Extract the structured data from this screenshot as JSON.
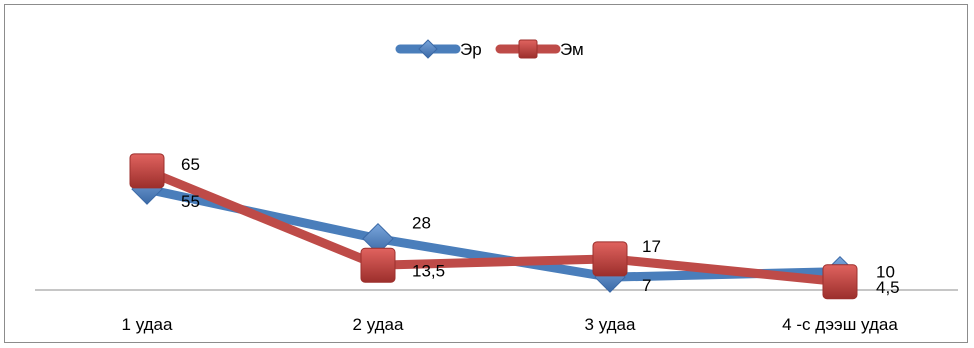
{
  "chart_data": {
    "type": "line",
    "categories": [
      "1 удаа",
      "2 удаа",
      "3 удаа",
      "4 -с дээш удаа"
    ],
    "series": [
      {
        "name": "Эр",
        "values": [
          55,
          28,
          7,
          10
        ],
        "color": "#4a7ebb",
        "marker": "diamond"
      },
      {
        "name": "Эм",
        "values": [
          65,
          13.5,
          17,
          4.5
        ],
        "color": "#be4b48",
        "marker": "square"
      }
    ],
    "data_labels": {
      "Эр": [
        "55",
        "28",
        "7",
        "10"
      ],
      "Эм": [
        "65",
        "13,5",
        "17",
        "4,5"
      ]
    },
    "ylim": [
      0,
      120
    ],
    "grid": false,
    "legend_position": "top"
  }
}
